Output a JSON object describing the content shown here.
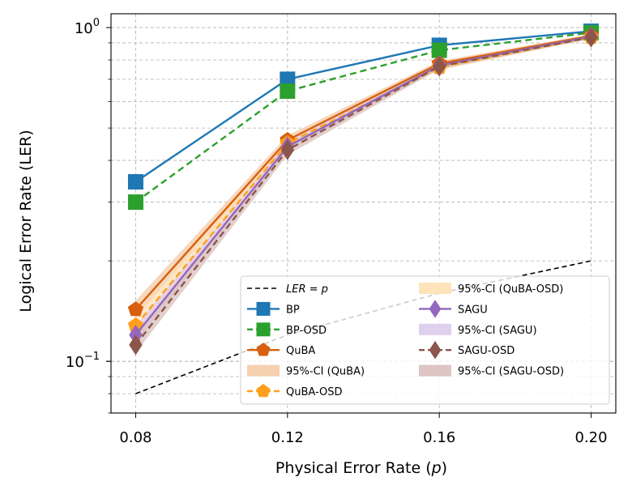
{
  "chart_data": {
    "type": "line",
    "title": "",
    "xlabel": "Physical Error Rate (p)",
    "xlabel_parts": [
      "Physical Error Rate (",
      "p",
      ")"
    ],
    "ylabel": "Logical Error Rate (LER)",
    "x": [
      0.08,
      0.12,
      0.16,
      0.2
    ],
    "x_tick_labels": [
      "0.08",
      "0.12",
      "0.16",
      "0.20"
    ],
    "xlim": [
      0.0735,
      0.2065
    ],
    "yscale": "log",
    "ylim": [
      0.07,
      1.1
    ],
    "y_tick_labels": [
      {
        "base": "10",
        "exp": "0",
        "value": 1.0
      },
      {
        "base": "10",
        "exp": "−1",
        "value": 0.1
      }
    ],
    "grid": true,
    "legend_position": "lower-right",
    "series": [
      {
        "name": "LER = p",
        "legend_label": "LER = p",
        "style": "dashed",
        "color": "#000000",
        "marker": "none",
        "values": [
          0.08,
          0.12,
          0.16,
          0.2
        ]
      },
      {
        "name": "BP",
        "style": "solid",
        "color": "#1f77b4",
        "marker": "square",
        "values": [
          0.345,
          0.7,
          0.885,
          0.975
        ]
      },
      {
        "name": "BP-OSD",
        "style": "dashed",
        "color": "#2ca02c",
        "marker": "square",
        "values": [
          0.3,
          0.645,
          0.855,
          0.965
        ]
      },
      {
        "name": "QuBA",
        "style": "solid",
        "color": "#d95f0e",
        "marker": "pentagon",
        "values": [
          0.143,
          0.46,
          0.78,
          0.945
        ],
        "ci": {
          "label": "95%-CI (QuBA)",
          "color": "#f5cba7",
          "lower": [
            0.135,
            0.445,
            0.765,
            0.935
          ],
          "upper": [
            0.152,
            0.475,
            0.795,
            0.955
          ]
        }
      },
      {
        "name": "QuBA-OSD",
        "style": "dashed",
        "color": "#ff9f1c",
        "marker": "pentagon",
        "values": [
          0.128,
          0.45,
          0.76,
          0.935
        ],
        "ci": {
          "label": "95%-CI (QuBA-OSD)",
          "color": "#ffe0b3",
          "lower": [
            0.121,
            0.435,
            0.745,
            0.925
          ],
          "upper": [
            0.136,
            0.465,
            0.775,
            0.945
          ]
        }
      },
      {
        "name": "SAGU",
        "style": "solid",
        "color": "#9467bd",
        "marker": "thin_diamond",
        "values": [
          0.12,
          0.44,
          0.77,
          0.94
        ],
        "ci": {
          "label": "95%-CI (SAGU)",
          "color": "#dccbeb",
          "lower": [
            0.114,
            0.425,
            0.755,
            0.93
          ],
          "upper": [
            0.127,
            0.455,
            0.785,
            0.95
          ]
        }
      },
      {
        "name": "SAGU-OSD",
        "style": "dashed",
        "color": "#8c564b",
        "marker": "thin_diamond",
        "values": [
          0.112,
          0.43,
          0.765,
          0.935
        ],
        "ci": {
          "label": "95%-CI (SAGU-OSD)",
          "color": "#d9c0bc",
          "lower": [
            0.106,
            0.415,
            0.75,
            0.925
          ],
          "upper": [
            0.119,
            0.445,
            0.78,
            0.945
          ]
        }
      }
    ],
    "legend": {
      "entries": [
        {
          "label_parts": [
            "LER = p"
          ],
          "italic": true,
          "kind": "line",
          "series": 0
        },
        {
          "label_parts": [
            "95%-CI (QuBA-OSD)"
          ],
          "kind": "patch",
          "series": 4
        },
        {
          "label_parts": [
            "BP"
          ],
          "kind": "line",
          "series": 1
        },
        {
          "label_parts": [
            "SAGU"
          ],
          "kind": "line",
          "series": 5
        },
        {
          "label_parts": [
            "BP-OSD"
          ],
          "kind": "line",
          "series": 2
        },
        {
          "label_parts": [
            "95%-CI (SAGU)"
          ],
          "kind": "patch",
          "series": 5
        },
        {
          "label_parts": [
            "QuBA"
          ],
          "kind": "line",
          "series": 3
        },
        {
          "label_parts": [
            "SAGU-OSD"
          ],
          "kind": "line",
          "series": 6
        },
        {
          "label_parts": [
            "95%-CI (QuBA)"
          ],
          "kind": "patch",
          "series": 3
        },
        {
          "label_parts": [
            "95%-CI (SAGU-OSD)"
          ],
          "kind": "patch",
          "series": 6
        },
        {
          "label_parts": [
            "QuBA-OSD"
          ],
          "kind": "line",
          "series": 4
        }
      ]
    }
  }
}
